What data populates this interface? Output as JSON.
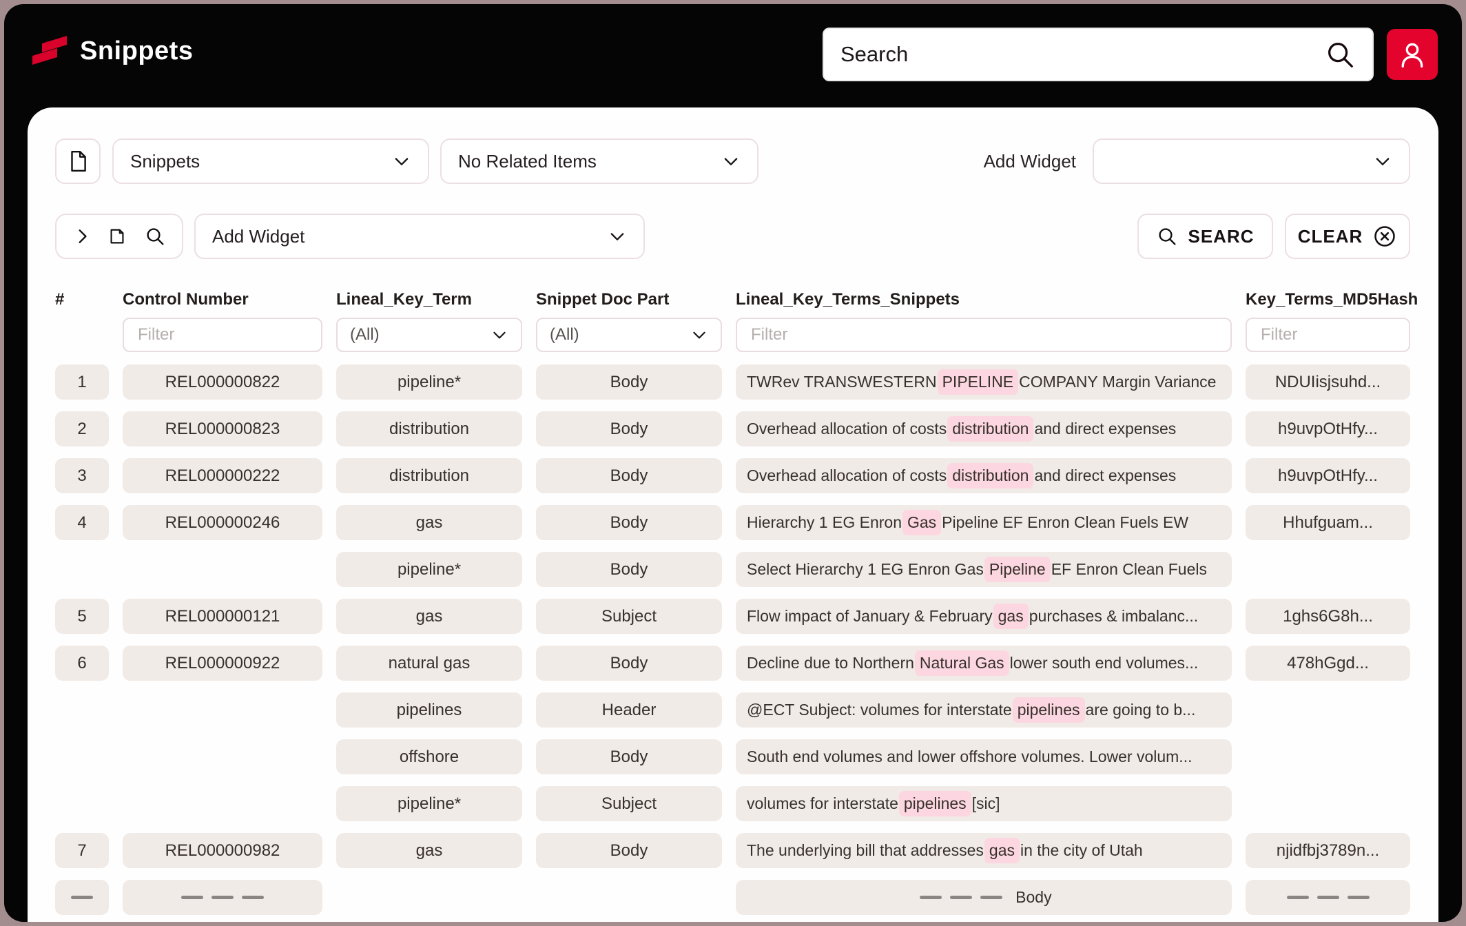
{
  "header": {
    "app_title": "Snippets",
    "search_placeholder": "Search"
  },
  "toolbar": {
    "view_select_value": "Snippets",
    "related_select_value": "No Related Items",
    "add_widget_label": "Add Widget",
    "add_widget_select_value": "",
    "panel_add_widget_value": "Add Widget",
    "search_button_label": "SEARC",
    "clear_button_label": "CLEAR"
  },
  "colors": {
    "accent_red": "#e4032d",
    "highlight_pink": "#fcd7e1",
    "chip_background": "#f1ebe7",
    "frame_border": "#a48d8e"
  },
  "table": {
    "columns": [
      {
        "key": "num",
        "label": "#"
      },
      {
        "key": "control",
        "label": "Control Number",
        "filter_type": "text",
        "filter": "Filter"
      },
      {
        "key": "term",
        "label": "Lineal_Key_Term",
        "filter_type": "select",
        "filter": "(All)"
      },
      {
        "key": "part",
        "label": "Snippet Doc Part",
        "filter_type": "select",
        "filter": "(All)"
      },
      {
        "key": "snippet",
        "label": "Lineal_Key_Terms_Snippets",
        "filter_type": "text",
        "filter": "Filter"
      },
      {
        "key": "hash",
        "label": "Key_Terms_MD5Hash",
        "filter_type": "text",
        "filter": "Filter"
      }
    ],
    "rows": [
      {
        "num": "1",
        "control": "REL000000822",
        "term": "pipeline*",
        "part": "Body",
        "snippet": [
          {
            "t": "TWRev TRANSWESTERN "
          },
          {
            "t": "PIPELINE",
            "h": true
          },
          {
            "t": " COMPANY Margin Variance"
          }
        ],
        "hash": "NDUIisjsuhd..."
      },
      {
        "num": "2",
        "control": "REL000000823",
        "term": "distribution",
        "part": "Body",
        "snippet": [
          {
            "t": "Overhead allocation of costs "
          },
          {
            "t": "distribution",
            "h": true
          },
          {
            "t": " and direct expenses"
          }
        ],
        "hash": "h9uvpOtHfy..."
      },
      {
        "num": "3",
        "control": "REL000000222",
        "term": "distribution",
        "part": "Body",
        "snippet": [
          {
            "t": "Overhead allocation of costs "
          },
          {
            "t": "distribution",
            "h": true
          },
          {
            "t": " and direct expenses"
          }
        ],
        "hash": "h9uvpOtHfy..."
      },
      {
        "num": "4",
        "control": "REL000000246",
        "term": "gas",
        "part": "Body",
        "snippet": [
          {
            "t": "Hierarchy 1 EG Enron "
          },
          {
            "t": "Gas",
            "h": true
          },
          {
            "t": " Pipeline EF Enron Clean Fuels EW"
          }
        ],
        "hash": "Hhufguam..."
      },
      {
        "num": "",
        "control": "",
        "term": "pipeline*",
        "part": "Body",
        "snippet": [
          {
            "t": "Select Hierarchy 1 EG Enron Gas "
          },
          {
            "t": "Pipeline",
            "h": true
          },
          {
            "t": " EF Enron Clean Fuels"
          }
        ],
        "hash": ""
      },
      {
        "num": "5",
        "control": "REL000000121",
        "term": "gas",
        "part": "Subject",
        "snippet": [
          {
            "t": "Flow impact of January & February "
          },
          {
            "t": "gas",
            "h": true
          },
          {
            "t": " purchases & imbalanc..."
          }
        ],
        "hash": "1ghs6G8h..."
      },
      {
        "num": "6",
        "control": "REL000000922",
        "term": "natural gas",
        "part": "Body",
        "snippet": [
          {
            "t": "Decline due to Northern "
          },
          {
            "t": "Natural Gas",
            "h": true
          },
          {
            "t": " lower south end volumes..."
          }
        ],
        "hash": "478hGgd..."
      },
      {
        "num": "",
        "control": "",
        "term": "pipelines",
        "part": "Header",
        "snippet": [
          {
            "t": "@ECT Subject: volumes for interstate "
          },
          {
            "t": "pipelines",
            "h": true
          },
          {
            "t": " are going to b..."
          }
        ],
        "hash": ""
      },
      {
        "num": "",
        "control": "",
        "term": "offshore",
        "part": "Body",
        "snippet": [
          {
            "t": "South end volumes and lower offshore volumes. Lower volum..."
          }
        ],
        "hash": ""
      },
      {
        "num": "",
        "control": "",
        "term": "pipeline*",
        "part": "Subject",
        "snippet": [
          {
            "t": "volumes for interstate "
          },
          {
            "t": "pipelines",
            "h": true
          },
          {
            "t": " [sic]"
          }
        ],
        "hash": ""
      },
      {
        "num": "7",
        "control": "REL000000982",
        "term": "gas",
        "part": "Body",
        "snippet": [
          {
            "t": "The underlying bill that addresses "
          },
          {
            "t": "gas",
            "h": true
          },
          {
            "t": " in the city of Utah"
          }
        ],
        "hash": "njidfbj3789n..."
      },
      {
        "num": {
          "bars": 1
        },
        "control": {
          "bars": 3
        },
        "term": "",
        "part": "",
        "snippet": [
          {
            "bars": 3
          },
          {
            "t": "Body"
          }
        ],
        "hash": {
          "bars": 3
        },
        "center": true
      }
    ]
  }
}
